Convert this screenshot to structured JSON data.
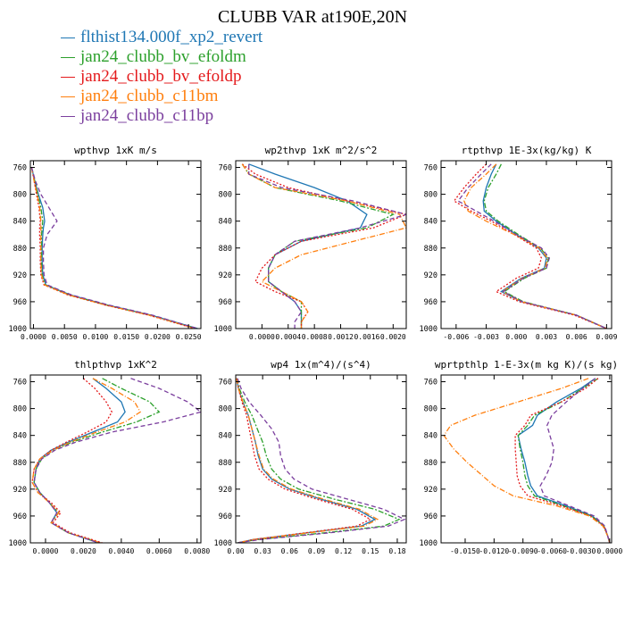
{
  "title": "CLUBB VAR at190E,20N",
  "legend": [
    {
      "name": "flthist134.000f_xp2_revert",
      "color": "#1f77b4",
      "dash": ""
    },
    {
      "name": "jan24_clubb_bv_efoldm",
      "color": "#2ca02c",
      "dash": "6,2,2,2"
    },
    {
      "name": "jan24_clubb_bv_efoldp",
      "color": "#e41a1c",
      "dash": "2,2"
    },
    {
      "name": "jan24_clubb_c11bm",
      "color": "#ff7f0e",
      "dash": "6,2,1,2"
    },
    {
      "name": "jan24_clubb_c11bp",
      "color": "#7b3f9e",
      "dash": "5,3"
    }
  ],
  "chart_data": [
    {
      "type": "line",
      "title": "wpthvp  1xK m/s",
      "xlim": [
        -0.0005,
        0.027
      ],
      "ylim": [
        750,
        1000
      ],
      "y_reversed": true,
      "xticks": [
        "0.0000",
        "0.0050",
        "0.0100",
        "0.0150",
        "0.0200",
        "0.0250"
      ],
      "xtick_values": [
        0,
        0.005,
        0.01,
        0.015,
        0.02,
        0.025
      ],
      "yticks": [
        "760",
        "800",
        "840",
        "880",
        "920",
        "960",
        "1000"
      ],
      "ytick_values": [
        760,
        800,
        840,
        880,
        920,
        960,
        1000
      ],
      "y": [
        760,
        780,
        800,
        820,
        840,
        850,
        860,
        880,
        900,
        920,
        935,
        950,
        965,
        980,
        1000
      ],
      "series": [
        {
          "name": "flthist134.000f_xp2_revert",
          "x": [
            -0.0003,
            0.0002,
            0.0008,
            0.0015,
            0.0018,
            0.0016,
            0.0015,
            0.0014,
            0.0014,
            0.0015,
            0.002,
            0.006,
            0.012,
            0.019,
            0.0265
          ]
        },
        {
          "name": "jan24_clubb_bv_efoldm",
          "x": [
            -0.0003,
            0.0002,
            0.0007,
            0.0012,
            0.0015,
            0.0014,
            0.0013,
            0.0013,
            0.0013,
            0.0014,
            0.0019,
            0.0058,
            0.0118,
            0.0188,
            0.0263
          ]
        },
        {
          "name": "jan24_clubb_bv_efoldp",
          "x": [
            -0.0003,
            0.0001,
            0.0005,
            0.0009,
            0.0011,
            0.001,
            0.001,
            0.0011,
            0.0011,
            0.0012,
            0.0017,
            0.0056,
            0.0116,
            0.0186,
            0.026
          ]
        },
        {
          "name": "jan24_clubb_c11bm",
          "x": [
            -0.0003,
            0.0001,
            0.0006,
            0.001,
            0.0012,
            0.0012,
            0.0012,
            0.0012,
            0.0012,
            0.0013,
            0.0018,
            0.0057,
            0.0117,
            0.0187,
            0.0262
          ]
        },
        {
          "name": "jan24_clubb_c11bp",
          "x": [
            -0.0003,
            0.0003,
            0.0012,
            0.0025,
            0.0038,
            0.003,
            0.0022,
            0.0016,
            0.0016,
            0.0017,
            0.0022,
            0.0062,
            0.0122,
            0.0192,
            0.0265
          ]
        }
      ]
    },
    {
      "type": "line",
      "title": "wp2thvp  1xK m^2/s^2",
      "xlim": [
        -0.0004,
        0.0022
      ],
      "ylim": [
        750,
        1000
      ],
      "y_reversed": true,
      "xticks": [
        "0.0000",
        "0.0004",
        "0.0008",
        "0.0012",
        "0.0016",
        "0.0020"
      ],
      "xtick_values": [
        0,
        0.0004,
        0.0008,
        0.0012,
        0.0016,
        0.002
      ],
      "yticks": [
        "760",
        "800",
        "840",
        "880",
        "920",
        "960",
        "1000"
      ],
      "ytick_values": [
        760,
        800,
        840,
        880,
        920,
        960,
        1000
      ],
      "y": [
        755,
        770,
        790,
        810,
        830,
        850,
        870,
        890,
        910,
        930,
        945,
        960,
        975,
        990,
        1000
      ],
      "series": [
        {
          "name": "flthist134.000f_xp2_revert",
          "x": [
            -0.0002,
            0.0002,
            0.0008,
            0.0013,
            0.0016,
            0.0015,
            0.0006,
            0.0002,
            0.0001,
            0.0001,
            0.0003,
            0.0005,
            0.0006,
            0.0006,
            0.0006
          ]
        },
        {
          "name": "jan24_clubb_bv_efoldm",
          "x": [
            -0.0003,
            -0.0002,
            0.0002,
            0.0012,
            0.002,
            0.0016,
            0.0005,
            0.0002,
            0.0001,
            0.0001,
            0.0003,
            0.0006,
            0.0006,
            0.0006,
            0.0006
          ]
        },
        {
          "name": "jan24_clubb_bv_efoldp",
          "x": [
            -0.0003,
            -0.0001,
            0.0004,
            0.0013,
            0.0022,
            0.0017,
            0.0006,
            0.0002,
            0.0,
            -0.0001,
            0.0002,
            0.0006,
            0.0007,
            0.0006,
            0.0006
          ]
        },
        {
          "name": "jan24_clubb_c11bm",
          "x": [
            -0.0003,
            -0.0002,
            0.0002,
            0.0013,
            0.0021,
            0.0022,
            0.0014,
            0.0006,
            0.0002,
            0.0,
            0.0003,
            0.0006,
            0.0007,
            0.0006,
            0.0006
          ]
        },
        {
          "name": "jan24_clubb_c11bp",
          "x": [
            -0.0002,
            -0.0002,
            0.0003,
            0.0014,
            0.0022,
            0.0015,
            0.0005,
            0.0002,
            0.0001,
            0.0001,
            0.0003,
            0.0005,
            0.0006,
            0.0005,
            0.0005
          ]
        }
      ]
    },
    {
      "type": "line",
      "title": "rtpthvp  1E-3x(kg/kg) K",
      "xlim": [
        -0.0075,
        0.0095
      ],
      "ylim": [
        750,
        1000
      ],
      "y_reversed": true,
      "xticks": [
        "-0.006",
        "-0.003",
        "0.000",
        "0.003",
        "0.006",
        "0.009"
      ],
      "xtick_values": [
        -0.006,
        -0.003,
        0,
        0.003,
        0.006,
        0.009
      ],
      "yticks": [
        "760",
        "800",
        "840",
        "880",
        "920",
        "960",
        "1000"
      ],
      "ytick_values": [
        760,
        800,
        840,
        880,
        920,
        960,
        1000
      ],
      "y": [
        755,
        770,
        790,
        810,
        825,
        840,
        860,
        880,
        895,
        910,
        925,
        945,
        960,
        980,
        1000
      ],
      "series": [
        {
          "name": "flthist134.000f_xp2_revert",
          "x": [
            -0.002,
            -0.0025,
            -0.003,
            -0.0033,
            -0.0032,
            -0.002,
            0.0,
            0.0022,
            0.003,
            0.0028,
            0.0005,
            -0.0015,
            0.0005,
            0.006,
            0.009
          ]
        },
        {
          "name": "jan24_clubb_bv_efoldm",
          "x": [
            -0.0015,
            -0.002,
            -0.0028,
            -0.0032,
            -0.003,
            -0.0018,
            0.0002,
            0.0024,
            0.0032,
            0.003,
            0.0008,
            -0.0012,
            0.0007,
            0.006,
            0.009
          ]
        },
        {
          "name": "jan24_clubb_bv_efoldp",
          "x": [
            -0.003,
            -0.004,
            -0.0052,
            -0.0062,
            -0.0045,
            -0.0025,
            -0.0002,
            0.002,
            0.0025,
            0.0022,
            0.0,
            -0.002,
            0.0003,
            0.0058,
            0.009
          ]
        },
        {
          "name": "jan24_clubb_c11bm",
          "x": [
            -0.002,
            -0.003,
            -0.0045,
            -0.0052,
            -0.0048,
            -0.003,
            -0.0002,
            0.0023,
            0.0031,
            0.0029,
            0.0006,
            -0.0014,
            0.0005,
            0.006,
            0.009
          ]
        },
        {
          "name": "jan24_clubb_c11bp",
          "x": [
            -0.0025,
            -0.0035,
            -0.0048,
            -0.0058,
            -0.004,
            -0.0022,
            0.0,
            0.0025,
            0.0033,
            0.003,
            0.0007,
            -0.0013,
            0.0006,
            0.006,
            0.009
          ]
        }
      ]
    },
    {
      "type": "line",
      "title": "thlpthvp  1xK^2",
      "xlim": [
        -0.0008,
        0.0082
      ],
      "ylim": [
        750,
        1000
      ],
      "y_reversed": true,
      "xticks": [
        "0.0000",
        "0.0020",
        "0.0040",
        "0.0060",
        "0.0080"
      ],
      "xtick_values": [
        0,
        0.002,
        0.004,
        0.006,
        0.008
      ],
      "yticks": [
        "760",
        "800",
        "840",
        "880",
        "920",
        "960",
        "1000"
      ],
      "ytick_values": [
        760,
        800,
        840,
        880,
        920,
        960,
        1000
      ],
      "y": [
        755,
        770,
        790,
        805,
        820,
        835,
        850,
        862,
        875,
        890,
        910,
        925,
        940,
        955,
        970,
        985,
        1000
      ],
      "series": [
        {
          "name": "flthist134.000f_xp2_revert",
          "x": [
            0.0025,
            0.0032,
            0.004,
            0.0042,
            0.0038,
            0.0025,
            0.0012,
            0.0003,
            -0.0003,
            -0.0005,
            -0.0006,
            -0.0003,
            0.0002,
            0.0006,
            0.0003,
            0.0012,
            0.0028
          ]
        },
        {
          "name": "jan24_clubb_bv_efoldm",
          "x": [
            0.003,
            0.004,
            0.0055,
            0.006,
            0.0048,
            0.003,
            0.0014,
            0.0004,
            -0.0002,
            -0.0005,
            -0.0006,
            -0.0003,
            0.0002,
            0.0007,
            0.0003,
            0.0012,
            0.0029
          ]
        },
        {
          "name": "jan24_clubb_bv_efoldp",
          "x": [
            0.002,
            0.0026,
            0.0032,
            0.0035,
            0.0032,
            0.0022,
            0.0011,
            0.0003,
            -0.0003,
            -0.0006,
            -0.0007,
            -0.0004,
            0.0003,
            0.0008,
            0.0004,
            0.0013,
            0.003
          ]
        },
        {
          "name": "jan24_clubb_c11bm",
          "x": [
            0.0025,
            0.0035,
            0.0047,
            0.005,
            0.0042,
            0.0027,
            0.0013,
            0.0004,
            -0.0003,
            -0.0006,
            -0.0007,
            -0.0004,
            0.0002,
            0.0007,
            0.0003,
            0.0012,
            0.0029
          ]
        },
        {
          "name": "jan24_clubb_c11bp",
          "x": [
            0.0045,
            0.006,
            0.0075,
            0.0082,
            0.0062,
            0.0035,
            0.0016,
            0.0005,
            -0.0002,
            -0.0005,
            -0.0006,
            -0.0003,
            0.0002,
            0.0006,
            0.0003,
            0.0012,
            0.0028
          ]
        }
      ]
    },
    {
      "type": "line",
      "title": "wp4  1x(m^4)/(s^4)",
      "xlim": [
        0.0,
        0.19
      ],
      "ylim": [
        750,
        1000
      ],
      "y_reversed": true,
      "xticks": [
        "0.00",
        "0.03",
        "0.06",
        "0.09",
        "0.12",
        "0.15",
        "0.18"
      ],
      "xtick_values": [
        0,
        0.03,
        0.06,
        0.09,
        0.12,
        0.15,
        0.18
      ],
      "yticks": [
        "760",
        "800",
        "840",
        "880",
        "920",
        "960",
        "1000"
      ],
      "ytick_values": [
        760,
        800,
        840,
        880,
        920,
        960,
        1000
      ],
      "y": [
        755,
        770,
        790,
        810,
        830,
        850,
        870,
        890,
        905,
        920,
        935,
        950,
        965,
        975,
        985,
        995,
        1000
      ],
      "series": [
        {
          "name": "flthist134.000f_xp2_revert",
          "x": [
            0.001,
            0.003,
            0.008,
            0.014,
            0.018,
            0.022,
            0.025,
            0.03,
            0.04,
            0.06,
            0.095,
            0.135,
            0.155,
            0.14,
            0.08,
            0.02,
            0.002
          ]
        },
        {
          "name": "jan24_clubb_bv_efoldm",
          "x": [
            0.001,
            0.004,
            0.01,
            0.018,
            0.024,
            0.03,
            0.034,
            0.04,
            0.05,
            0.07,
            0.11,
            0.155,
            0.182,
            0.165,
            0.1,
            0.025,
            0.002
          ]
        },
        {
          "name": "jan24_clubb_bv_efoldp",
          "x": [
            0.001,
            0.003,
            0.007,
            0.012,
            0.015,
            0.018,
            0.021,
            0.026,
            0.036,
            0.055,
            0.09,
            0.13,
            0.15,
            0.135,
            0.078,
            0.02,
            0.002
          ]
        },
        {
          "name": "jan24_clubb_c11bm",
          "x": [
            0.001,
            0.003,
            0.008,
            0.014,
            0.018,
            0.022,
            0.026,
            0.031,
            0.042,
            0.062,
            0.098,
            0.138,
            0.158,
            0.143,
            0.082,
            0.021,
            0.002
          ]
        },
        {
          "name": "jan24_clubb_c11bp",
          "x": [
            0.002,
            0.006,
            0.015,
            0.028,
            0.04,
            0.048,
            0.05,
            0.055,
            0.065,
            0.085,
            0.125,
            0.165,
            0.188,
            0.17,
            0.105,
            0.028,
            0.002
          ]
        }
      ]
    },
    {
      "type": "line",
      "title": "wprtpthlp  1-E-3x(m kg K)/(s kg)",
      "xlim": [
        -0.0175,
        0.0002
      ],
      "ylim": [
        750,
        1000
      ],
      "y_reversed": true,
      "xticks": [
        "-0.0150",
        "-0.0120",
        "-0.0090",
        "-0.0060",
        "-0.0030",
        "0.0000"
      ],
      "xtick_values": [
        -0.015,
        -0.012,
        -0.009,
        -0.006,
        -0.003,
        0
      ],
      "yticks": [
        "760",
        "800",
        "840",
        "880",
        "920",
        "960",
        "1000"
      ],
      "ytick_values": [
        760,
        800,
        840,
        880,
        920,
        960,
        1000
      ],
      "y": [
        755,
        770,
        790,
        810,
        825,
        840,
        860,
        880,
        900,
        915,
        930,
        945,
        960,
        975,
        990,
        1000
      ],
      "series": [
        {
          "name": "flthist134.000f_xp2_revert",
          "x": [
            -0.0015,
            -0.003,
            -0.0055,
            -0.0075,
            -0.008,
            -0.0095,
            -0.0092,
            -0.0088,
            -0.0085,
            -0.0082,
            -0.0075,
            -0.0045,
            -0.0018,
            -0.0006,
            -0.0002,
            0.0
          ]
        },
        {
          "name": "jan24_clubb_bv_efoldm",
          "x": [
            -0.0012,
            -0.0028,
            -0.005,
            -0.0078,
            -0.0085,
            -0.0095,
            -0.0093,
            -0.009,
            -0.0088,
            -0.0085,
            -0.0078,
            -0.0048,
            -0.0019,
            -0.0006,
            -0.0002,
            0.0
          ]
        },
        {
          "name": "jan24_clubb_bv_efoldp",
          "x": [
            -0.0012,
            -0.0025,
            -0.005,
            -0.0082,
            -0.0088,
            -0.0098,
            -0.0098,
            -0.0097,
            -0.0096,
            -0.0093,
            -0.0085,
            -0.005,
            -0.002,
            -0.0006,
            -0.0002,
            0.0
          ]
        },
        {
          "name": "jan24_clubb_c11bm",
          "x": [
            -0.0022,
            -0.005,
            -0.0095,
            -0.014,
            -0.0165,
            -0.0172,
            -0.0162,
            -0.0148,
            -0.0132,
            -0.012,
            -0.01,
            -0.0055,
            -0.0021,
            -0.0007,
            -0.0002,
            0.0
          ]
        },
        {
          "name": "jan24_clubb_c11bp",
          "x": [
            -0.0015,
            -0.0028,
            -0.0045,
            -0.006,
            -0.0065,
            -0.0062,
            -0.0058,
            -0.006,
            -0.0066,
            -0.0072,
            -0.0068,
            -0.0042,
            -0.0016,
            -0.0005,
            -0.0002,
            0.0
          ]
        }
      ]
    }
  ]
}
